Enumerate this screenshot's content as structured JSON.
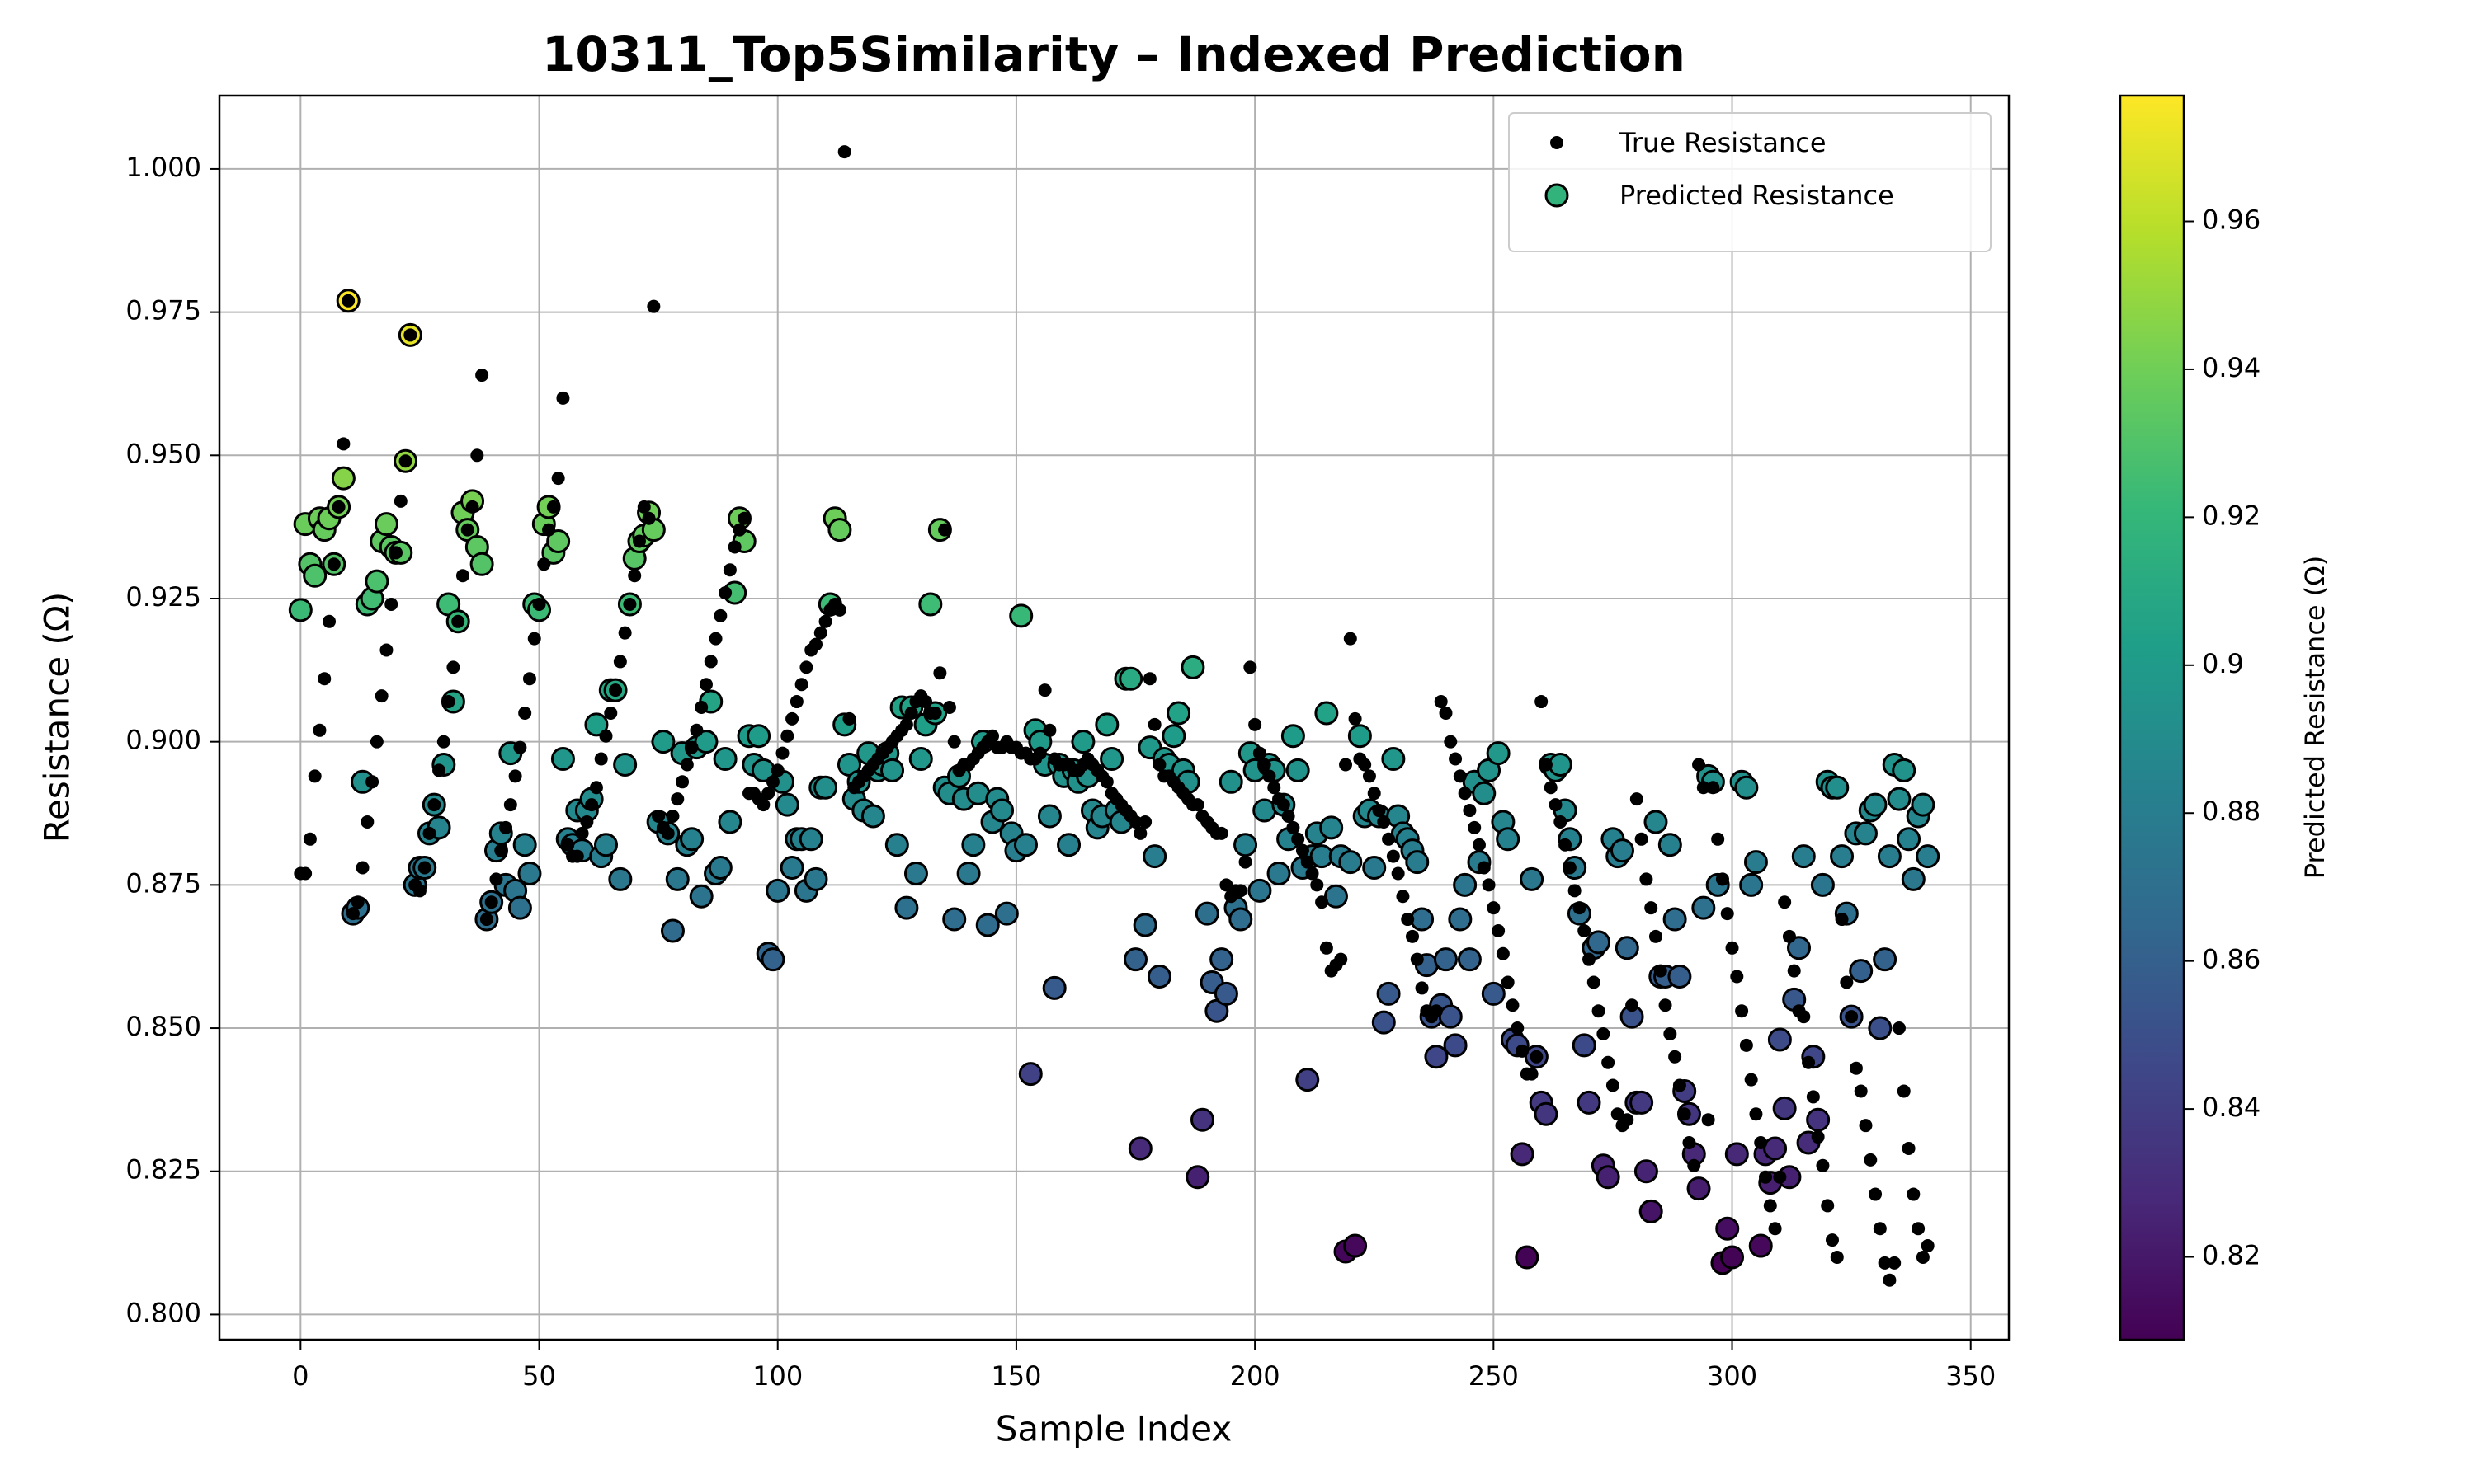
{
  "chart_data": {
    "type": "scatter",
    "title": "10311_Top5Similarity – Indexed Prediction",
    "x_label": "Sample Index",
    "y_label": "Resistance (Ω)",
    "xlim": [
      -17,
      358
    ],
    "ylim": [
      0.7956,
      1.0128
    ],
    "xticks": [
      0,
      50,
      100,
      150,
      200,
      250,
      300,
      350
    ],
    "yticks": [
      {
        "value": 0.8,
        "label": "0.800"
      },
      {
        "value": 0.825,
        "label": "0.825"
      },
      {
        "value": 0.85,
        "label": "0.850"
      },
      {
        "value": 0.875,
        "label": "0.875"
      },
      {
        "value": 0.9,
        "label": "0.900"
      },
      {
        "value": 0.925,
        "label": "0.925"
      },
      {
        "value": 0.95,
        "label": "0.950"
      },
      {
        "value": 0.975,
        "label": "0.975"
      },
      {
        "value": 1.0,
        "label": "1.000"
      }
    ],
    "grid": true,
    "legend": "upper right",
    "colorbar": {
      "label": "Predicted Resistance (Ω)",
      "colormap": "viridis",
      "clim": [
        0.8088,
        0.977
      ],
      "ticks": [
        0.82,
        0.84,
        0.86,
        0.88,
        0.9,
        0.92,
        0.94,
        0.96
      ]
    },
    "x": [
      0,
      1,
      2,
      3,
      4,
      5,
      6,
      7,
      8,
      9,
      10,
      11,
      12,
      13,
      14,
      15,
      16,
      17,
      18,
      19,
      20,
      21,
      22,
      23,
      24,
      25,
      26,
      27,
      28,
      29,
      30,
      31,
      32,
      33,
      34,
      35,
      36,
      37,
      38,
      39,
      40,
      41,
      42,
      43,
      44,
      45,
      46,
      47,
      48,
      49,
      50,
      51,
      52,
      53,
      54,
      55,
      56,
      57,
      58,
      59,
      60,
      61,
      62,
      63,
      64,
      65,
      66,
      67,
      68,
      69,
      70,
      71,
      72,
      73,
      74,
      75,
      76,
      77,
      78,
      79,
      80,
      81,
      82,
      83,
      84,
      85,
      86,
      87,
      88,
      89,
      90,
      91,
      92,
      93,
      94,
      95,
      96,
      97,
      98,
      99,
      100,
      101,
      102,
      103,
      104,
      105,
      106,
      107,
      108,
      109,
      110,
      111,
      112,
      113,
      114,
      115,
      116,
      117,
      118,
      119,
      120,
      121,
      122,
      123,
      124,
      125,
      126,
      127,
      128,
      129,
      130,
      131,
      132,
      133,
      134,
      135,
      136,
      137,
      138,
      139,
      140,
      141,
      142,
      143,
      144,
      145,
      146,
      147,
      148,
      149,
      150,
      151,
      152,
      153,
      154,
      155,
      156,
      157,
      158,
      159,
      160,
      161,
      162,
      163,
      164,
      165,
      166,
      167,
      168,
      169,
      170,
      171,
      172,
      173,
      174,
      175,
      176,
      177,
      178,
      179,
      180,
      181,
      182,
      183,
      184,
      185,
      186,
      187,
      188,
      189,
      190,
      191,
      192,
      193,
      194,
      195,
      196,
      197,
      198,
      199,
      200,
      201,
      202,
      203,
      204,
      205,
      206,
      207,
      208,
      209,
      210,
      211,
      212,
      213,
      214,
      215,
      216,
      217,
      218,
      219,
      220,
      221,
      222,
      223,
      224,
      225,
      226,
      227,
      228,
      229,
      230,
      231,
      232,
      233,
      234,
      235,
      236,
      237,
      238,
      239,
      240,
      241,
      242,
      243,
      244,
      245,
      246,
      247,
      248,
      249,
      250,
      251,
      252,
      253,
      254,
      255,
      256,
      257,
      258,
      259,
      260,
      261,
      262,
      263,
      264,
      265,
      266,
      267,
      268,
      269,
      270,
      271,
      272,
      273,
      274,
      275,
      276,
      277,
      278,
      279,
      280,
      281,
      282,
      283,
      284,
      285,
      286,
      287,
      288,
      289,
      290,
      291,
      292,
      293,
      294,
      295,
      296,
      297,
      298,
      299,
      300,
      301,
      302,
      303,
      304,
      305,
      306,
      307,
      308,
      309,
      310,
      311,
      312,
      313,
      314,
      315,
      316,
      317,
      318,
      319,
      320,
      321,
      322,
      323,
      324,
      325,
      326,
      327,
      328,
      329,
      330,
      331,
      332,
      333,
      334,
      335,
      336,
      337,
      338,
      339,
      340,
      341
    ],
    "series": [
      {
        "name": "True Resistance",
        "color": "#000000",
        "values": [
          0.877,
          0.877,
          0.883,
          0.894,
          0.902,
          0.911,
          0.921,
          0.931,
          0.941,
          0.952,
          0.977,
          0.87,
          0.872,
          0.878,
          0.886,
          0.893,
          0.9,
          0.908,
          0.916,
          0.924,
          0.933,
          0.942,
          0.949,
          0.971,
          0.875,
          0.874,
          0.878,
          0.884,
          0.889,
          0.895,
          0.9,
          0.907,
          0.913,
          0.921,
          0.929,
          0.937,
          0.941,
          0.95,
          0.964,
          0.869,
          0.872,
          0.876,
          0.881,
          0.885,
          0.889,
          0.894,
          0.899,
          0.905,
          0.911,
          0.918,
          0.924,
          0.931,
          0.937,
          0.941,
          0.946,
          0.96,
          0.882,
          0.88,
          0.88,
          0.884,
          0.886,
          0.889,
          0.892,
          0.897,
          0.901,
          0.905,
          0.909,
          0.914,
          0.919,
          0.924,
          0.929,
          0.935,
          0.941,
          0.939,
          0.976,
          0.887,
          0.885,
          0.884,
          0.887,
          0.89,
          0.893,
          0.896,
          0.899,
          0.902,
          0.906,
          0.91,
          0.914,
          0.918,
          0.922,
          0.926,
          0.93,
          0.934,
          0.937,
          0.939,
          0.891,
          0.891,
          0.89,
          0.889,
          0.891,
          0.893,
          0.895,
          0.898,
          0.901,
          0.904,
          0.907,
          0.91,
          0.913,
          0.916,
          0.917,
          0.919,
          0.921,
          0.923,
          0.924,
          0.923,
          1.003,
          0.904,
          0.892,
          0.893,
          0.894,
          0.895,
          0.896,
          0.897,
          0.898,
          0.899,
          0.9,
          0.901,
          0.902,
          0.903,
          0.905,
          0.907,
          0.908,
          0.907,
          0.905,
          0.905,
          0.912,
          0.937,
          0.906,
          0.9,
          0.895,
          0.896,
          0.896,
          0.897,
          0.898,
          0.899,
          0.9,
          0.901,
          0.899,
          0.899,
          0.9,
          0.899,
          0.899,
          0.898,
          0.898,
          0.897,
          0.897,
          0.898,
          0.909,
          0.902,
          0.897,
          0.896,
          0.896,
          0.896,
          0.895,
          0.895,
          0.896,
          0.897,
          0.896,
          0.895,
          0.894,
          0.893,
          0.891,
          0.89,
          0.889,
          0.888,
          0.887,
          0.886,
          0.884,
          0.886,
          0.911,
          0.903,
          0.896,
          0.894,
          0.894,
          0.893,
          0.892,
          0.891,
          0.89,
          0.889,
          0.889,
          0.887,
          0.886,
          0.885,
          0.884,
          0.884,
          0.875,
          0.873,
          0.874,
          0.874,
          0.879,
          0.913,
          0.903,
          0.898,
          0.896,
          0.894,
          0.892,
          0.89,
          0.889,
          0.887,
          0.885,
          0.883,
          0.881,
          0.879,
          0.877,
          0.875,
          0.872,
          0.864,
          0.86,
          0.861,
          0.862,
          0.896,
          0.918,
          0.904,
          0.897,
          0.896,
          0.894,
          0.891,
          0.888,
          0.886,
          0.883,
          0.88,
          0.877,
          0.873,
          0.869,
          0.866,
          0.862,
          0.857,
          0.853,
          0.852,
          0.853,
          0.907,
          0.905,
          0.9,
          0.897,
          0.894,
          0.891,
          0.888,
          0.885,
          0.882,
          0.878,
          0.875,
          0.871,
          0.867,
          0.863,
          0.858,
          0.854,
          0.85,
          0.846,
          0.842,
          0.842,
          0.845,
          0.907,
          0.896,
          0.892,
          0.889,
          0.886,
          0.882,
          0.878,
          0.874,
          0.871,
          0.867,
          0.862,
          0.858,
          0.853,
          0.849,
          0.844,
          0.84,
          0.835,
          0.833,
          0.834,
          0.854,
          0.89,
          0.883,
          0.876,
          0.871,
          0.866,
          0.86,
          0.854,
          0.849,
          0.845,
          0.84,
          0.835,
          0.83,
          0.826,
          0.896,
          0.892,
          0.834,
          0.892,
          0.883,
          0.876,
          0.87,
          0.864,
          0.859,
          0.853,
          0.847,
          0.841,
          0.835,
          0.83,
          0.824,
          0.819,
          0.815,
          0.824,
          0.872,
          0.866,
          0.86,
          0.853,
          0.852,
          0.844,
          0.838,
          0.831,
          0.826,
          0.819,
          0.813,
          0.81,
          0.869,
          0.858,
          0.852,
          0.843,
          0.839,
          0.833,
          0.827,
          0.821,
          0.815,
          0.809,
          0.806,
          0.809,
          0.85,
          0.839,
          0.829,
          0.821,
          0.815,
          0.81,
          0.812
        ]
      },
      {
        "name": "Predicted Resistance",
        "colormap": "viridis",
        "values": [
          0.923,
          0.938,
          0.931,
          0.929,
          0.939,
          0.937,
          0.939,
          0.931,
          0.941,
          0.946,
          0.977,
          0.87,
          0.871,
          0.893,
          0.924,
          0.925,
          0.928,
          0.935,
          0.938,
          0.934,
          0.933,
          0.933,
          0.949,
          0.971,
          0.875,
          0.878,
          0.878,
          0.884,
          0.889,
          0.885,
          0.896,
          0.924,
          0.907,
          0.921,
          0.94,
          0.937,
          0.942,
          0.934,
          0.931,
          0.869,
          0.872,
          0.881,
          0.884,
          0.875,
          0.898,
          0.874,
          0.871,
          0.882,
          0.877,
          0.924,
          0.923,
          0.938,
          0.941,
          0.933,
          0.935,
          0.897,
          0.883,
          0.882,
          0.888,
          0.881,
          0.888,
          0.89,
          0.903,
          0.88,
          0.882,
          0.909,
          0.909,
          0.876,
          0.896,
          0.924,
          0.932,
          0.935,
          0.936,
          0.94,
          0.937,
          0.886,
          0.9,
          0.884,
          0.867,
          0.876,
          0.898,
          0.882,
          0.883,
          0.899,
          0.873,
          0.9,
          0.907,
          0.877,
          0.878,
          0.897,
          0.886,
          0.926,
          0.939,
          0.935,
          0.901,
          0.896,
          0.901,
          0.895,
          0.863,
          0.862,
          0.874,
          0.893,
          0.889,
          0.878,
          0.883,
          0.883,
          0.874,
          0.883,
          0.876,
          0.892,
          0.892,
          0.924,
          0.939,
          0.937,
          0.903,
          0.896,
          0.89,
          0.893,
          0.888,
          0.898,
          0.887,
          0.895,
          0.896,
          0.898,
          0.895,
          0.882,
          0.906,
          0.871,
          0.906,
          0.877,
          0.897,
          0.903,
          0.924,
          0.905,
          0.937,
          0.892,
          0.891,
          0.869,
          0.894,
          0.89,
          0.877,
          0.882,
          0.891,
          0.9,
          0.868,
          0.886,
          0.89,
          0.888,
          0.87,
          0.884,
          0.881,
          0.922,
          0.882,
          0.842,
          0.902,
          0.9,
          0.896,
          0.887,
          0.857,
          0.896,
          0.894,
          0.882,
          0.895,
          0.893,
          0.9,
          0.894,
          0.888,
          0.885,
          0.887,
          0.903,
          0.897,
          0.888,
          0.886,
          0.911,
          0.911,
          0.862,
          0.829,
          0.868,
          0.899,
          0.88,
          0.859,
          0.897,
          0.896,
          0.901,
          0.905,
          0.895,
          0.893,
          0.913,
          0.824,
          0.834,
          0.87,
          0.858,
          0.853,
          0.862,
          0.856,
          0.893,
          0.871,
          0.869,
          0.882,
          0.898,
          0.895,
          0.874,
          0.888,
          0.896,
          0.895,
          0.877,
          0.889,
          0.883,
          0.901,
          0.895,
          0.878,
          0.841,
          0.88,
          0.884,
          0.88,
          0.905,
          0.885,
          0.873,
          0.88,
          0.811,
          0.879,
          0.812,
          0.901,
          0.887,
          0.888,
          0.878,
          0.887,
          0.851,
          0.856,
          0.897,
          0.887,
          0.884,
          0.883,
          0.881,
          0.879,
          0.869,
          0.861,
          0.852,
          0.845,
          0.854,
          0.862,
          0.852,
          0.847,
          0.869,
          0.875,
          0.862,
          0.893,
          0.879,
          0.891,
          0.895,
          0.856,
          0.898,
          0.886,
          0.883,
          0.848,
          0.847,
          0.828,
          0.81,
          0.876,
          0.845,
          0.837,
          0.835,
          0.896,
          0.895,
          0.896,
          0.888,
          0.883,
          0.878,
          0.87,
          0.847,
          0.837,
          0.864,
          0.865,
          0.826,
          0.824,
          0.883,
          0.88,
          0.881,
          0.864,
          0.852,
          0.837,
          0.837,
          0.825,
          0.818,
          0.886,
          0.859,
          0.859,
          0.882,
          0.869,
          0.859,
          0.839,
          0.835,
          0.828,
          0.822,
          0.871,
          0.894,
          0.893,
          0.875,
          0.809,
          0.815,
          0.81,
          0.828,
          0.893,
          0.892,
          0.875,
          0.879,
          0.812,
          0.828,
          0.823,
          0.829,
          0.848,
          0.836,
          0.824,
          0.855,
          0.864,
          0.88,
          0.83,
          0.845,
          0.834,
          0.875,
          0.893,
          0.892,
          0.892,
          0.88,
          0.87,
          0.852,
          0.884,
          0.86,
          0.884,
          0.888,
          0.889,
          0.85,
          0.862,
          0.88,
          0.896,
          0.89,
          0.895,
          0.883,
          0.876,
          0.887,
          0.889,
          0.88
        ]
      }
    ]
  }
}
